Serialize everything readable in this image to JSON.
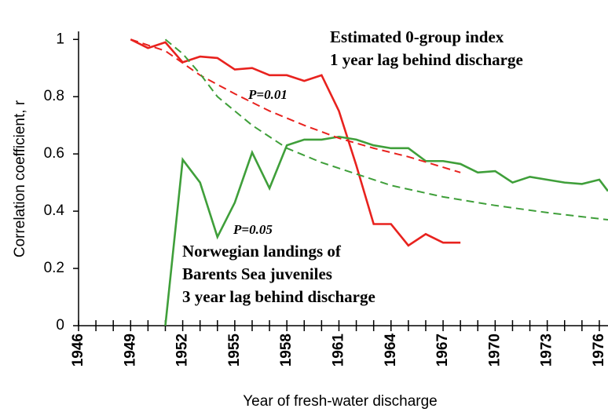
{
  "chart_data": {
    "type": "line",
    "xlabel": "Year of fresh-water discharge",
    "ylabel": "Correlation coefficient, r",
    "xlim": [
      1946,
      1976.5
    ],
    "xticks": [
      1946,
      1949,
      1952,
      1955,
      1958,
      1961,
      1964,
      1967,
      1970,
      1973,
      1976
    ],
    "ylim": [
      0,
      1.05
    ],
    "yticks": [
      0,
      0.2,
      0.4,
      0.6,
      0.8,
      1
    ],
    "series": [
      {
        "name": "Estimated 0-group index",
        "color": "#e8221e",
        "style": "solid",
        "x": [
          1949,
          1950,
          1951,
          1952,
          1953,
          1954,
          1955,
          1956,
          1957,
          1958,
          1959,
          1960,
          1961,
          1962,
          1963,
          1964,
          1965,
          1966,
          1967,
          1968
        ],
        "values": [
          1.0,
          0.97,
          0.99,
          0.92,
          0.94,
          0.935,
          0.895,
          0.9,
          0.875,
          0.875,
          0.855,
          0.875,
          0.75,
          0.56,
          0.355,
          0.355,
          0.28,
          0.32,
          0.29,
          0.29
        ]
      },
      {
        "name": "Norwegian landings of Barents Sea juveniles",
        "color": "#3f9f3a",
        "style": "solid",
        "x": [
          1951,
          1952,
          1953,
          1954,
          1955,
          1956,
          1957,
          1958,
          1959,
          1960,
          1961,
          1962,
          1963,
          1964,
          1965,
          1966,
          1967,
          1968,
          1969,
          1970,
          1971,
          1972,
          1973,
          1974,
          1975,
          1976,
          1976.5
        ],
        "values": [
          0,
          0.58,
          0.5,
          0.31,
          0.43,
          0.605,
          0.48,
          0.63,
          0.65,
          0.65,
          0.66,
          0.65,
          0.63,
          0.62,
          0.62,
          0.575,
          0.575,
          0.565,
          0.535,
          0.54,
          0.5,
          0.52,
          0.51,
          0.5,
          0.495,
          0.51,
          0.47
        ]
      },
      {
        "name": "P=0.01",
        "color": "#e8221e",
        "style": "dashed",
        "x": [
          1949,
          1951,
          1953,
          1955,
          1957,
          1959,
          1961,
          1963,
          1965,
          1968
        ],
        "values": [
          1.0,
          0.96,
          0.875,
          0.81,
          0.75,
          0.7,
          0.655,
          0.62,
          0.59,
          0.535
        ]
      },
      {
        "name": "P=0.05",
        "color": "#3f9f3a",
        "style": "dashed",
        "x": [
          1951,
          1952,
          1953,
          1954,
          1956,
          1958,
          1960,
          1962,
          1964,
          1967,
          1970,
          1973,
          1976.5
        ],
        "values": [
          1.0,
          0.95,
          0.88,
          0.8,
          0.7,
          0.62,
          0.57,
          0.53,
          0.49,
          0.45,
          0.42,
          0.395,
          0.37
        ]
      }
    ],
    "annotations": [
      {
        "lines": [
          "Estimated 0-group index",
          "1 year lag behind discharge"
        ],
        "color": "#e8221e"
      },
      {
        "lines": [
          "Norwegian landings of",
          "Barents Sea juveniles",
          "3 year lag behind discharge"
        ],
        "color": "#5c9a1c"
      }
    ]
  }
}
